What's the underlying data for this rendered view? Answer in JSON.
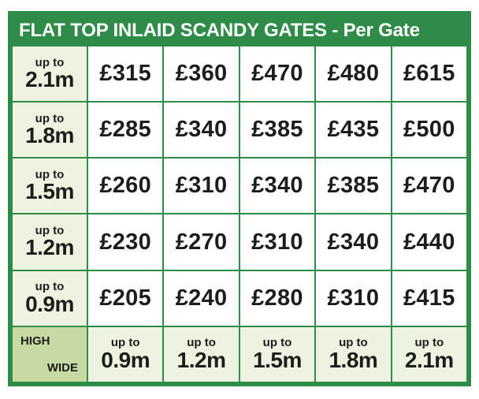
{
  "title": "FLAT TOP INLAID SCANDY GATES - Per Gate",
  "labels": {
    "up_to": "up to",
    "high": "HIGH",
    "wide": "WIDE"
  },
  "colors": {
    "brand_green": "#2e8b48",
    "header_cell_green": "#edf3e0",
    "corner_cell_green": "#c7daa4",
    "price_text": "#1d1d1b",
    "title_text": "#ffffff",
    "price_cell_bg": "#ffffff"
  },
  "table": {
    "unit": "Per Gate",
    "widths": [
      "0.9m",
      "1.2m",
      "1.5m",
      "1.8m",
      "2.1m"
    ],
    "rows": [
      {
        "height": "2.1m",
        "prices": [
          "£315",
          "£360",
          "£470",
          "£480",
          "£615"
        ]
      },
      {
        "height": "1.8m",
        "prices": [
          "£285",
          "£340",
          "£385",
          "£435",
          "£500"
        ]
      },
      {
        "height": "1.5m",
        "prices": [
          "£260",
          "£310",
          "£340",
          "£385",
          "£470"
        ]
      },
      {
        "height": "1.2m",
        "prices": [
          "£230",
          "£270",
          "£310",
          "£340",
          "£440"
        ]
      },
      {
        "height": "0.9m",
        "prices": [
          "£205",
          "£240",
          "£280",
          "£310",
          "£415"
        ]
      }
    ]
  }
}
